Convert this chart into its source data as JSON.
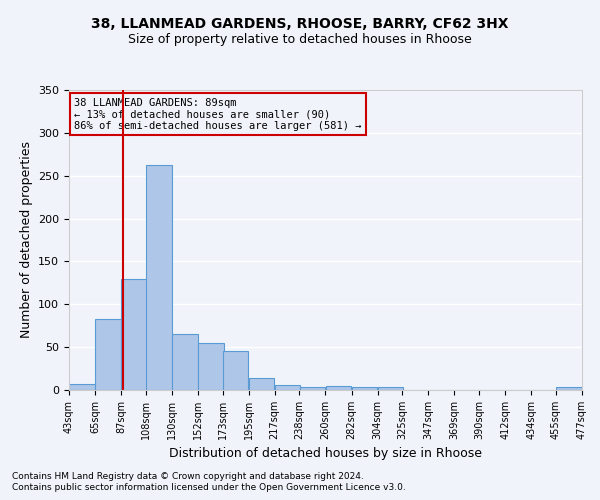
{
  "title1": "38, LLANMEAD GARDENS, RHOOSE, BARRY, CF62 3HX",
  "title2": "Size of property relative to detached houses in Rhoose",
  "xlabel": "Distribution of detached houses by size in Rhoose",
  "ylabel": "Number of detached properties",
  "footnote1": "Contains HM Land Registry data © Crown copyright and database right 2024.",
  "footnote2": "Contains public sector information licensed under the Open Government Licence v3.0.",
  "annotation_title": "38 LLANMEAD GARDENS: 89sqm",
  "annotation_line1": "← 13% of detached houses are smaller (90)",
  "annotation_line2": "86% of semi-detached houses are larger (581) →",
  "property_size": 89,
  "vline_x": 89,
  "bar_left_edges": [
    43,
    65,
    87,
    108,
    130,
    152,
    173,
    195,
    217,
    238,
    260,
    282,
    304,
    325,
    347,
    369,
    390,
    412,
    434,
    455
  ],
  "bar_heights": [
    7,
    83,
    130,
    262,
    65,
    55,
    45,
    14,
    6,
    4,
    5,
    4,
    3,
    0,
    0,
    0,
    0,
    0,
    0,
    3
  ],
  "bin_width": 22,
  "tick_labels": [
    "43sqm",
    "65sqm",
    "87sqm",
    "108sqm",
    "130sqm",
    "152sqm",
    "173sqm",
    "195sqm",
    "217sqm",
    "238sqm",
    "260sqm",
    "282sqm",
    "304sqm",
    "325sqm",
    "347sqm",
    "369sqm",
    "390sqm",
    "412sqm",
    "434sqm",
    "455sqm",
    "477sqm"
  ],
  "bar_color": "#aec6e8",
  "bar_edge_color": "#5b9bd5",
  "vline_color": "#cc0000",
  "box_edge_color": "#cc0000",
  "background_color": "#f0f4fa",
  "grid_color": "#ffffff",
  "ylim": [
    0,
    350
  ],
  "yticks": [
    0,
    50,
    100,
    150,
    200,
    250,
    300,
    350
  ],
  "title1_fontsize": 10,
  "title2_fontsize": 9,
  "ylabel_fontsize": 9,
  "xlabel_fontsize": 9,
  "tick_fontsize": 7,
  "footnote_fontsize": 6.5,
  "ann_fontsize": 7.5
}
